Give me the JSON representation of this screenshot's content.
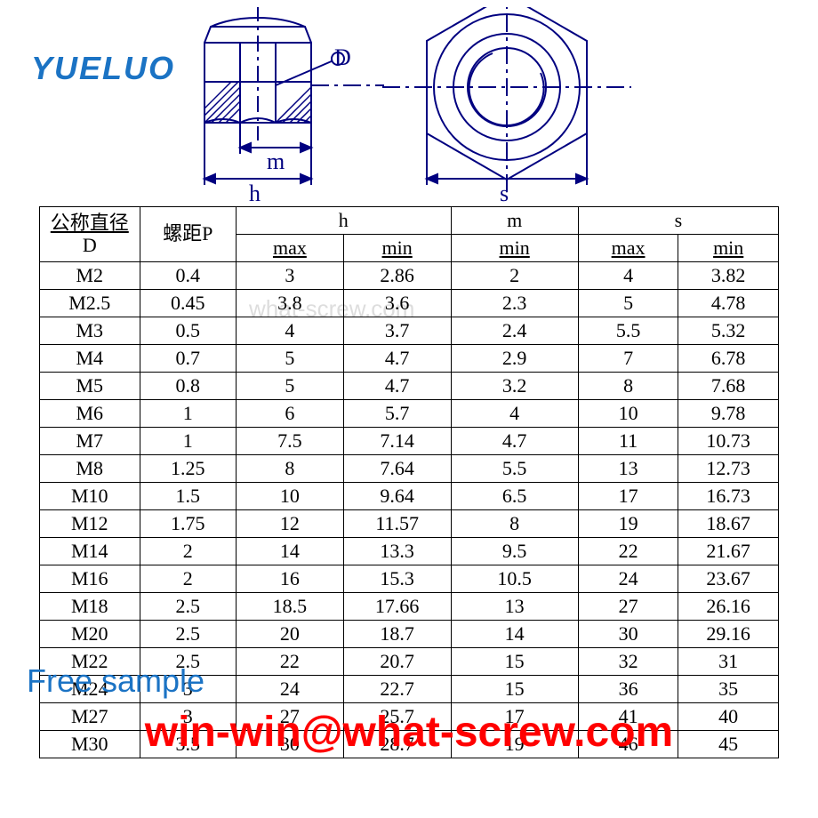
{
  "brand": {
    "text": "YUELUO",
    "color": "#1b73c4"
  },
  "watermark": {
    "text": "what-screw.com"
  },
  "free_sample": {
    "text": "Free sample",
    "color": "#1b73c4"
  },
  "email": {
    "text": "win-win@what-screw.com",
    "color": "#ff0000"
  },
  "diagram": {
    "stroke": "#000080",
    "labels": {
      "D": "D",
      "m": "m",
      "h": "h",
      "s": "s"
    }
  },
  "table": {
    "border_color": "#000000",
    "background": "#ffffff",
    "header": {
      "D_top": "公称直径",
      "D_bottom": "D",
      "P": "螺距P",
      "h": "h",
      "m": "m",
      "s": "s",
      "max": "max",
      "min": "min"
    },
    "columns": [
      "D",
      "P",
      "h_max",
      "h_min",
      "m_min",
      "s_max",
      "s_min"
    ],
    "rows": [
      [
        "M2",
        "0.4",
        "3",
        "2.86",
        "2",
        "4",
        "3.82"
      ],
      [
        "M2.5",
        "0.45",
        "3.8",
        "3.6",
        "2.3",
        "5",
        "4.78"
      ],
      [
        "M3",
        "0.5",
        "4",
        "3.7",
        "2.4",
        "5.5",
        "5.32"
      ],
      [
        "M4",
        "0.7",
        "5",
        "4.7",
        "2.9",
        "7",
        "6.78"
      ],
      [
        "M5",
        "0.8",
        "5",
        "4.7",
        "3.2",
        "8",
        "7.68"
      ],
      [
        "M6",
        "1",
        "6",
        "5.7",
        "4",
        "10",
        "9.78"
      ],
      [
        "M7",
        "1",
        "7.5",
        "7.14",
        "4.7",
        "11",
        "10.73"
      ],
      [
        "M8",
        "1.25",
        "8",
        "7.64",
        "5.5",
        "13",
        "12.73"
      ],
      [
        "M10",
        "1.5",
        "10",
        "9.64",
        "6.5",
        "17",
        "16.73"
      ],
      [
        "M12",
        "1.75",
        "12",
        "11.57",
        "8",
        "19",
        "18.67"
      ],
      [
        "M14",
        "2",
        "14",
        "13.3",
        "9.5",
        "22",
        "21.67"
      ],
      [
        "M16",
        "2",
        "16",
        "15.3",
        "10.5",
        "24",
        "23.67"
      ],
      [
        "M18",
        "2.5",
        "18.5",
        "17.66",
        "13",
        "27",
        "26.16"
      ],
      [
        "M20",
        "2.5",
        "20",
        "18.7",
        "14",
        "30",
        "29.16"
      ],
      [
        "M22",
        "2.5",
        "22",
        "20.7",
        "15",
        "32",
        "31"
      ],
      [
        "M24",
        "3",
        "24",
        "22.7",
        "15",
        "36",
        "35"
      ],
      [
        "M27",
        "3",
        "27",
        "25.7",
        "17",
        "41",
        "40"
      ],
      [
        "M30",
        "3.5",
        "30",
        "28.7",
        "19",
        "46",
        "45"
      ]
    ]
  }
}
